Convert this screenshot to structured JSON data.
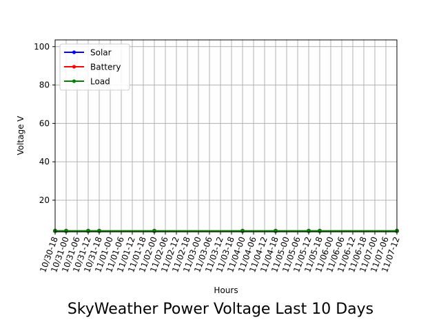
{
  "chart_data": {
    "type": "line",
    "title": "SkyWeather Power Voltage Last 10 Days",
    "xlabel": "Hours",
    "ylabel": "Voltage V",
    "ylim": [
      3.5,
      103.5
    ],
    "yticks": [
      20,
      40,
      60,
      80,
      100
    ],
    "grid": true,
    "legend_position": "top-left",
    "x_ticks": [
      "10/30-18",
      "10/31-00",
      "10/31-06",
      "10/31-12",
      "10/31-18",
      "11/01-00",
      "11/01-06",
      "11/01-12",
      "11/01-18",
      "11/02-00",
      "11/02-06",
      "11/02-12",
      "11/02-18",
      "11/03-00",
      "11/03-06",
      "11/03-12",
      "11/03-18",
      "11/04-00",
      "11/04-06",
      "11/04-12",
      "11/04-18",
      "11/05-00",
      "11/05-06",
      "11/05-12",
      "11/05-18",
      "11/06-00",
      "11/06-06",
      "11/06-12",
      "11/06-18",
      "11/07-00",
      "11/07-06",
      "11/07-12"
    ],
    "series": [
      {
        "name": "Solar",
        "color": "#0000ff",
        "points": [
          [
            "10/30-18",
            4.0
          ],
          [
            "10/31-00",
            4.0
          ],
          [
            "10/31-12",
            4.0
          ],
          [
            "10/31-18",
            4.0
          ],
          [
            "11/02-00",
            4.0
          ],
          [
            "11/04-00",
            4.0
          ],
          [
            "11/04-18",
            4.0
          ],
          [
            "11/05-12",
            4.0
          ],
          [
            "11/05-18",
            4.0
          ],
          [
            "11/07-12",
            4.0
          ]
        ]
      },
      {
        "name": "Battery",
        "color": "#ff0000",
        "points": [
          [
            "10/30-18",
            4.0
          ],
          [
            "10/31-00",
            4.0
          ],
          [
            "10/31-12",
            4.0
          ],
          [
            "10/31-18",
            4.0
          ],
          [
            "11/02-00",
            4.0
          ],
          [
            "11/04-00",
            4.0
          ],
          [
            "11/04-18",
            4.0
          ],
          [
            "11/05-12",
            4.0
          ],
          [
            "11/05-18",
            4.0
          ],
          [
            "11/07-12",
            4.0
          ]
        ]
      },
      {
        "name": "Load",
        "color": "#008000",
        "points": [
          [
            "10/30-18",
            4.0
          ],
          [
            "10/31-00",
            4.0
          ],
          [
            "10/31-12",
            4.0
          ],
          [
            "10/31-18",
            4.0
          ],
          [
            "11/02-00",
            4.0
          ],
          [
            "11/04-00",
            4.0
          ],
          [
            "11/04-18",
            4.0
          ],
          [
            "11/05-12",
            4.0
          ],
          [
            "11/05-18",
            4.0
          ],
          [
            "11/07-12",
            4.0
          ]
        ]
      }
    ]
  }
}
